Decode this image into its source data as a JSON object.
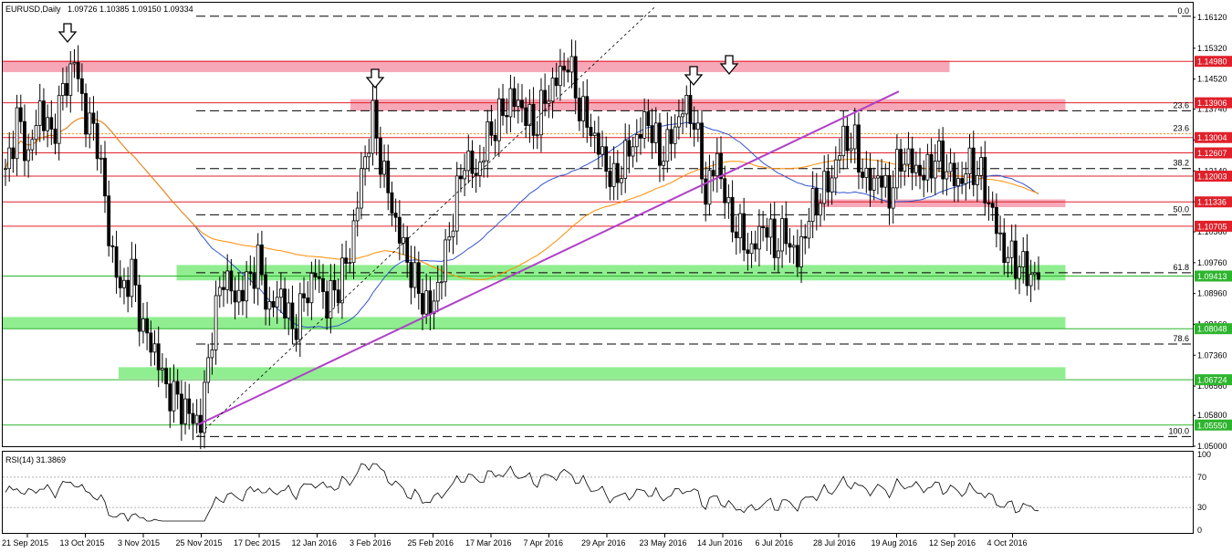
{
  "header": {
    "symbol": "EURUSD,Daily",
    "ohlc": "1.09726 1.10385 1.09150 1.09334"
  },
  "rsi_panel": {
    "label": "RSI(14) 31.3869",
    "levels": [
      "100",
      "70",
      "30",
      "0"
    ]
  },
  "colors": {
    "zone_red": "#f7a8b8",
    "zone_green": "#90ee90",
    "level_red": "#e0202a",
    "level_green": "#2db52d",
    "sma_blue": "#3355cc",
    "sma_orange": "#ff8c00",
    "trend_purple": "#b040c8",
    "candle": "#000000"
  },
  "chart_data": {
    "type": "candlestick",
    "ylim": [
      1.05,
      1.165
    ],
    "price_ticks": [
      "1.16120",
      "1.15320",
      "1.14520",
      "1.13740",
      "1.12940",
      "1.12140",
      "1.11340",
      "1.10560",
      "1.09760",
      "1.08960",
      "1.08160",
      "1.07360",
      "1.06560",
      "1.05800",
      "1.05000"
    ],
    "time_ticks": [
      "21 Sep 2015",
      "13 Oct 2015",
      "3 Nov 2015",
      "25 Nov 2015",
      "17 Dec 2015",
      "12 Jan 2016",
      "3 Feb 2016",
      "25 Feb 2016",
      "17 Mar 2016",
      "7 Apr 2016",
      "29 Apr 2016",
      "23 May 2016",
      "14 Jun 2016",
      "6 Jul 2016",
      "28 Jul 2016",
      "19 Aug 2016",
      "12 Sep 2016",
      "4 Oct 2016"
    ],
    "horizontal_levels": [
      {
        "price": 1.1498,
        "label": "1.14980",
        "color": "red"
      },
      {
        "price": 1.13906,
        "label": "1.13906",
        "color": "red"
      },
      {
        "price": 1.13004,
        "label": "1.13004",
        "color": "red"
      },
      {
        "price": 1.12607,
        "label": "1.12607",
        "color": "red"
      },
      {
        "price": 1.12003,
        "label": "1.12003",
        "color": "red"
      },
      {
        "price": 1.11336,
        "label": "1.11336",
        "color": "red"
      },
      {
        "price": 1.10705,
        "label": "1.10705",
        "color": "red"
      },
      {
        "price": 1.09413,
        "label": "1.09413",
        "color": "green"
      },
      {
        "price": 1.08048,
        "label": "1.08048",
        "color": "green"
      },
      {
        "price": 1.06724,
        "label": "1.06724",
        "color": "green"
      },
      {
        "price": 1.0555,
        "label": "1.05550",
        "color": "green"
      }
    ],
    "fibonacci_levels": [
      {
        "ratio": "0.0",
        "price": 1.1615
      },
      {
        "ratio": "23.6",
        "price": 1.137
      },
      {
        "ratio": "38.2",
        "price": 1.122
      },
      {
        "ratio": "50.0",
        "price": 1.11
      },
      {
        "ratio": "61.8",
        "price": 1.095
      },
      {
        "ratio": "78.6",
        "price": 1.0765
      },
      {
        "ratio": "100.0",
        "price": 1.0525
      }
    ],
    "fib_dotted_label": "23.6",
    "zones": [
      {
        "from": 1.147,
        "to": 1.15,
        "color": "red",
        "start": "21 Sep 2015",
        "end": "19 Aug 2016"
      },
      {
        "from": 1.137,
        "to": 1.14,
        "color": "red",
        "start": "3 Feb 2016",
        "end": "4 Oct 2016"
      },
      {
        "from": 1.112,
        "to": 1.114,
        "color": "red",
        "start": "28 Jul 2016",
        "end": "4 Oct 2016"
      },
      {
        "from": 1.093,
        "to": 1.097,
        "color": "green",
        "start": "25 Nov 2015",
        "end": "4 Oct 2016"
      },
      {
        "from": 1.0805,
        "to": 1.0835,
        "color": "green",
        "start": "21 Sep 2015",
        "end": "4 Oct 2016"
      },
      {
        "from": 1.0675,
        "to": 1.0705,
        "color": "green",
        "start": "3 Nov 2015",
        "end": "4 Oct 2016"
      }
    ],
    "down_arrows_at": [
      "13 Oct 2015",
      "3 Feb 2016",
      "23 May 2016",
      "14 Jun 2016"
    ],
    "trendline": {
      "from": {
        "date": "25 Nov 2015",
        "price": 1.0555
      },
      "to": {
        "date": "19 Aug 2016",
        "price": 1.142
      }
    },
    "close_series": [
      1.12,
      1.135,
      1.125,
      1.138,
      1.13,
      1.142,
      1.15,
      1.135,
      1.13,
      1.105,
      1.09,
      1.095,
      1.08,
      1.075,
      1.065,
      1.062,
      1.058,
      1.056,
      1.08,
      1.095,
      1.088,
      1.092,
      1.098,
      1.085,
      1.09,
      1.08,
      1.088,
      1.095,
      1.087,
      1.092,
      1.1,
      1.12,
      1.135,
      1.12,
      1.108,
      1.098,
      1.09,
      1.085,
      1.095,
      1.11,
      1.125,
      1.12,
      1.13,
      1.135,
      1.14,
      1.138,
      1.132,
      1.14,
      1.145,
      1.15,
      1.138,
      1.132,
      1.125,
      1.118,
      1.125,
      1.13,
      1.135,
      1.125,
      1.13,
      1.138,
      1.135,
      1.115,
      1.125,
      1.11,
      1.105,
      1.1,
      1.108,
      1.102,
      1.105,
      1.098,
      1.11,
      1.115,
      1.12,
      1.13,
      1.128,
      1.118,
      1.12,
      1.115,
      1.125,
      1.123,
      1.12,
      1.125,
      1.122,
      1.118,
      1.123,
      1.12,
      1.11,
      1.1,
      1.098,
      1.095,
      1.0933
    ],
    "rsi_range": [
      0,
      100
    ],
    "rsi_levels": [
      70,
      30
    ]
  }
}
